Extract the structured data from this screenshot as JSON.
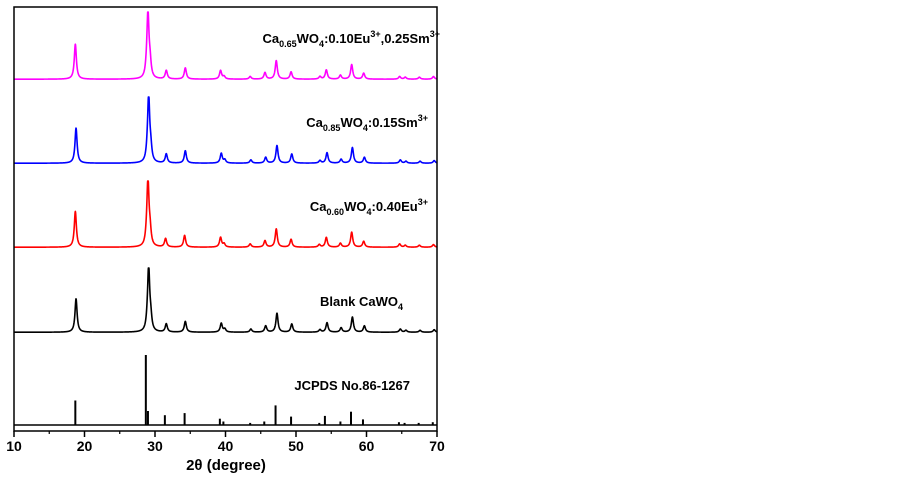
{
  "chart_data": {
    "type": "line",
    "xlabel": "2θ (degree)",
    "xlim": [
      10,
      70
    ],
    "xticks": [
      10,
      20,
      30,
      40,
      50,
      60,
      70
    ],
    "colors": {
      "magenta": "#ff00ff",
      "blue": "#0000ff",
      "red": "#ff0000",
      "black": "#000000"
    },
    "series": [
      {
        "label": {
          "base": "Ca",
          "sub1": "0.65",
          "mid": "WO",
          "sub2": "4",
          "rest1": ":0.10Eu",
          "sup1": "3+",
          "rest2": ",0.25Sm",
          "sup2": "3+"
        },
        "color": "#ff00ff",
        "peaks": [
          {
            "x": 18.7,
            "y": 0.53
          },
          {
            "x": 28.8,
            "y": 0.08
          },
          {
            "x": 29.0,
            "y": 0.97
          },
          {
            "x": 29.3,
            "y": 0.2
          },
          {
            "x": 31.6,
            "y": 0.13
          },
          {
            "x": 34.3,
            "y": 0.17
          },
          {
            "x": 39.3,
            "y": 0.13
          },
          {
            "x": 39.8,
            "y": 0.04
          },
          {
            "x": 43.5,
            "y": 0.04
          },
          {
            "x": 45.6,
            "y": 0.1
          },
          {
            "x": 47.2,
            "y": 0.28
          },
          {
            "x": 49.3,
            "y": 0.11
          },
          {
            "x": 53.4,
            "y": 0.04
          },
          {
            "x": 54.3,
            "y": 0.14
          },
          {
            "x": 56.3,
            "y": 0.06
          },
          {
            "x": 57.9,
            "y": 0.22
          },
          {
            "x": 59.6,
            "y": 0.09
          },
          {
            "x": 64.7,
            "y": 0.04
          },
          {
            "x": 65.5,
            "y": 0.03
          },
          {
            "x": 67.5,
            "y": 0.03
          },
          {
            "x": 69.5,
            "y": 0.04
          }
        ]
      },
      {
        "label": {
          "base": "Ca",
          "sub1": "0.85",
          "mid": "WO",
          "sub2": "4",
          "rest1": ":0.15Sm",
          "sup1": "3+",
          "rest2": "",
          "sup2": ""
        },
        "color": "#0000ff",
        "peaks": [
          {
            "x": 18.8,
            "y": 0.54
          },
          {
            "x": 28.9,
            "y": 0.08
          },
          {
            "x": 29.1,
            "y": 1.0
          },
          {
            "x": 29.4,
            "y": 0.18
          },
          {
            "x": 31.6,
            "y": 0.14
          },
          {
            "x": 34.3,
            "y": 0.19
          },
          {
            "x": 39.4,
            "y": 0.15
          },
          {
            "x": 39.9,
            "y": 0.05
          },
          {
            "x": 43.6,
            "y": 0.05
          },
          {
            "x": 45.7,
            "y": 0.09
          },
          {
            "x": 47.3,
            "y": 0.27
          },
          {
            "x": 49.4,
            "y": 0.14
          },
          {
            "x": 53.4,
            "y": 0.04
          },
          {
            "x": 54.4,
            "y": 0.16
          },
          {
            "x": 56.4,
            "y": 0.06
          },
          {
            "x": 58.0,
            "y": 0.24
          },
          {
            "x": 59.7,
            "y": 0.09
          },
          {
            "x": 64.8,
            "y": 0.05
          },
          {
            "x": 65.6,
            "y": 0.03
          },
          {
            "x": 67.6,
            "y": 0.03
          },
          {
            "x": 69.6,
            "y": 0.04
          }
        ]
      },
      {
        "label": {
          "base": "Ca",
          "sub1": "0.60",
          "mid": "WO",
          "sub2": "4",
          "rest1": ":0.40Eu",
          "sup1": "3+",
          "rest2": "",
          "sup2": ""
        },
        "color": "#ff0000",
        "peaks": [
          {
            "x": 18.7,
            "y": 0.55
          },
          {
            "x": 28.8,
            "y": 0.08
          },
          {
            "x": 29.0,
            "y": 1.0
          },
          {
            "x": 29.3,
            "y": 0.2
          },
          {
            "x": 31.5,
            "y": 0.13
          },
          {
            "x": 34.2,
            "y": 0.18
          },
          {
            "x": 39.3,
            "y": 0.15
          },
          {
            "x": 39.8,
            "y": 0.05
          },
          {
            "x": 43.5,
            "y": 0.05
          },
          {
            "x": 45.6,
            "y": 0.1
          },
          {
            "x": 47.2,
            "y": 0.28
          },
          {
            "x": 49.3,
            "y": 0.12
          },
          {
            "x": 53.3,
            "y": 0.04
          },
          {
            "x": 54.3,
            "y": 0.15
          },
          {
            "x": 56.3,
            "y": 0.06
          },
          {
            "x": 57.9,
            "y": 0.23
          },
          {
            "x": 59.6,
            "y": 0.09
          },
          {
            "x": 64.7,
            "y": 0.05
          },
          {
            "x": 65.5,
            "y": 0.03
          },
          {
            "x": 67.5,
            "y": 0.03
          },
          {
            "x": 69.5,
            "y": 0.04
          }
        ]
      },
      {
        "label": {
          "base": "Blank CaWO",
          "sub1": "",
          "mid": "",
          "sub2": "4",
          "rest1": "",
          "sup1": "",
          "rest2": "",
          "sup2": ""
        },
        "color": "#000000",
        "peaks": [
          {
            "x": 18.8,
            "y": 0.53
          },
          {
            "x": 28.9,
            "y": 0.08
          },
          {
            "x": 29.1,
            "y": 1.0
          },
          {
            "x": 29.4,
            "y": 0.18
          },
          {
            "x": 31.6,
            "y": 0.13
          },
          {
            "x": 34.3,
            "y": 0.17
          },
          {
            "x": 39.4,
            "y": 0.14
          },
          {
            "x": 39.9,
            "y": 0.05
          },
          {
            "x": 43.6,
            "y": 0.05
          },
          {
            "x": 45.7,
            "y": 0.1
          },
          {
            "x": 47.3,
            "y": 0.3
          },
          {
            "x": 49.4,
            "y": 0.13
          },
          {
            "x": 53.4,
            "y": 0.04
          },
          {
            "x": 54.4,
            "y": 0.15
          },
          {
            "x": 56.4,
            "y": 0.07
          },
          {
            "x": 58.0,
            "y": 0.24
          },
          {
            "x": 59.7,
            "y": 0.1
          },
          {
            "x": 64.8,
            "y": 0.05
          },
          {
            "x": 65.6,
            "y": 0.03
          },
          {
            "x": 67.6,
            "y": 0.03
          },
          {
            "x": 69.6,
            "y": 0.04
          }
        ]
      },
      {
        "label": {
          "base": "JCPDS No.86-1267",
          "sub1": "",
          "mid": "",
          "sub2": "",
          "rest1": "",
          "sup1": "",
          "rest2": "",
          "sup2": ""
        },
        "color": "#000000",
        "style": "sticks",
        "peaks": [
          {
            "x": 18.7,
            "y": 0.35
          },
          {
            "x": 28.7,
            "y": 1.0
          },
          {
            "x": 29.0,
            "y": 0.2
          },
          {
            "x": 31.4,
            "y": 0.14
          },
          {
            "x": 34.2,
            "y": 0.17
          },
          {
            "x": 39.2,
            "y": 0.09
          },
          {
            "x": 39.7,
            "y": 0.05
          },
          {
            "x": 43.5,
            "y": 0.03
          },
          {
            "x": 45.5,
            "y": 0.05
          },
          {
            "x": 47.1,
            "y": 0.28
          },
          {
            "x": 49.3,
            "y": 0.12
          },
          {
            "x": 53.3,
            "y": 0.03
          },
          {
            "x": 54.1,
            "y": 0.13
          },
          {
            "x": 56.3,
            "y": 0.05
          },
          {
            "x": 57.8,
            "y": 0.19
          },
          {
            "x": 59.5,
            "y": 0.08
          },
          {
            "x": 64.6,
            "y": 0.04
          },
          {
            "x": 65.4,
            "y": 0.03
          },
          {
            "x": 67.4,
            "y": 0.03
          },
          {
            "x": 69.4,
            "y": 0.04
          }
        ]
      }
    ]
  }
}
